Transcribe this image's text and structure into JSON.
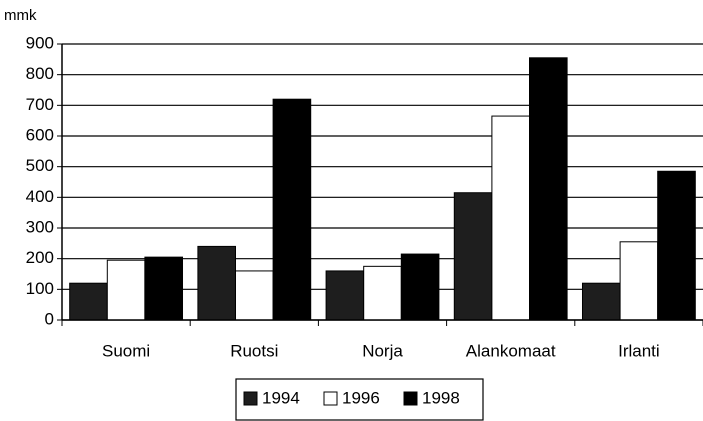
{
  "chart_data": {
    "type": "bar",
    "y_label": "mmk",
    "categories": [
      "Suomi",
      "Ruotsi",
      "Norja",
      "Alankomaat",
      "Irlanti"
    ],
    "series": [
      {
        "name": "1994",
        "color": "#1e1e1e",
        "values": [
          120,
          240,
          160,
          415,
          120
        ]
      },
      {
        "name": "1996",
        "color": "#ffffff",
        "values": [
          195,
          160,
          175,
          665,
          255
        ]
      },
      {
        "name": "1998",
        "color": "#000000",
        "values": [
          205,
          720,
          215,
          855,
          485
        ]
      }
    ],
    "ylim": [
      0,
      900
    ],
    "yticks": [
      0,
      100,
      200,
      300,
      400,
      500,
      600,
      700,
      800,
      900
    ],
    "grid": true,
    "legend": "bottom"
  }
}
